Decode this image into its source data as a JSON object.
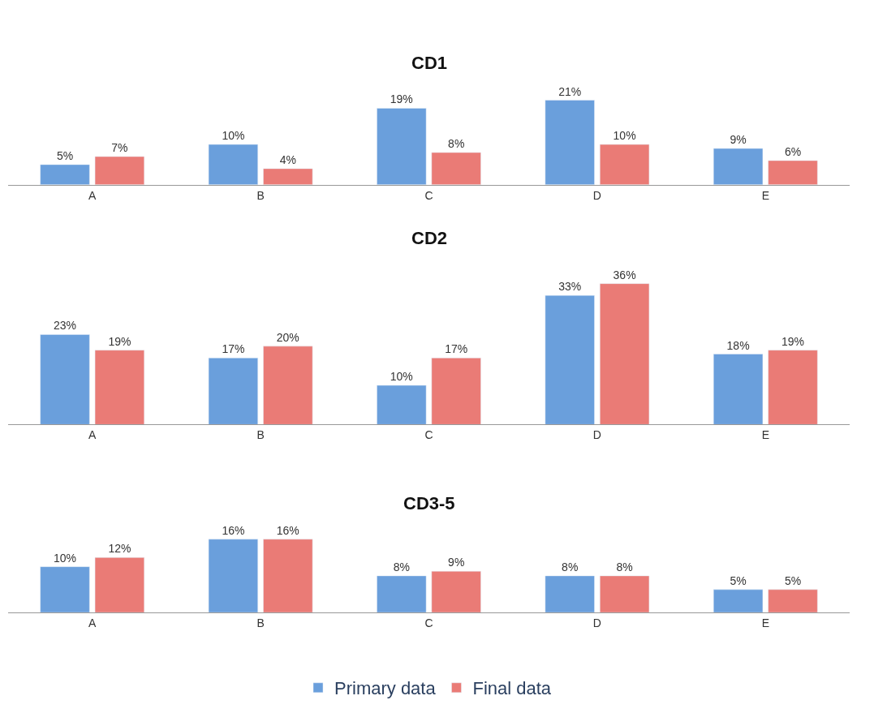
{
  "chart_data": [
    {
      "type": "bar",
      "title": "CD1",
      "categories": [
        "A",
        "B",
        "C",
        "D",
        "E"
      ],
      "legend": false,
      "series": [
        {
          "color": "#6a9fdc",
          "values": [
            5,
            10,
            19,
            21,
            9
          ],
          "value_labels": [
            "5%",
            "10%",
            "19%",
            "21%",
            "9%"
          ]
        },
        {
          "color": "#ea7b76",
          "values": [
            7,
            4,
            8,
            10,
            6
          ],
          "value_labels": [
            "7%",
            "4%",
            "8%",
            "10%",
            "6%"
          ]
        }
      ]
    },
    {
      "type": "bar",
      "title": "CD2",
      "categories": [
        "A",
        "B",
        "C",
        "D",
        "E"
      ],
      "legend": false,
      "series": [
        {
          "color": "#6a9fdc",
          "values": [
            23,
            17,
            10,
            33,
            18
          ],
          "value_labels": [
            "23%",
            "17%",
            "10%",
            "33%",
            "18%"
          ]
        },
        {
          "color": "#ea7b76",
          "values": [
            19,
            20,
            17,
            36,
            19
          ],
          "value_labels": [
            "19%",
            "20%",
            "17%",
            "36%",
            "19%"
          ]
        }
      ]
    },
    {
      "type": "bar",
      "title": "CD3-5",
      "categories": [
        "A",
        "B",
        "C",
        "D",
        "E"
      ],
      "legend": "bottom",
      "series": [
        {
          "name": "Primary data",
          "color": "#6a9fdc",
          "values": [
            10,
            16,
            8,
            8,
            5
          ],
          "value_labels": [
            "10%",
            "16%",
            "8%",
            "8%",
            "5%"
          ]
        },
        {
          "name": "Final data",
          "color": "#ea7b76",
          "values": [
            12,
            16,
            9,
            8,
            5
          ],
          "value_labels": [
            "12%",
            "16%",
            "9%",
            "8%",
            "5%"
          ]
        }
      ]
    }
  ]
}
